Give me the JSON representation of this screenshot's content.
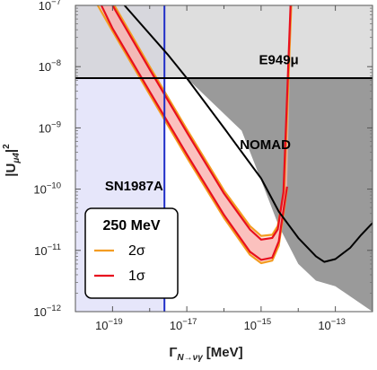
{
  "chart_data": {
    "type": "area",
    "xlabel_main": "Γ",
    "xlabel_sub": "N→νγ",
    "xlabel_unit": "[MeV]",
    "ylabel_main": "|U",
    "ylabel_sub": "μ4",
    "ylabel_exp": "2",
    "x_scale": "log",
    "y_scale": "log",
    "xlim": [
      1e-20,
      1e-12
    ],
    "ylim": [
      1e-12,
      1e-07
    ],
    "x_ticks": [
      {
        "value": 1e-19,
        "base": "10",
        "exp": "−19"
      },
      {
        "value": 1e-17,
        "base": "10",
        "exp": "−17"
      },
      {
        "value": 1e-15,
        "base": "10",
        "exp": "−15"
      },
      {
        "value": 1e-13,
        "base": "10",
        "exp": "−13"
      }
    ],
    "y_ticks": [
      {
        "value": 1e-12,
        "base": "10",
        "exp": "−12"
      },
      {
        "value": 1e-11,
        "base": "10",
        "exp": "−11"
      },
      {
        "value": 1e-10,
        "base": "10",
        "exp": "−10"
      },
      {
        "value": 1e-09,
        "base": "10",
        "exp": "−9"
      },
      {
        "value": 1e-08,
        "base": "10",
        "exp": "−8"
      },
      {
        "value": 1e-07,
        "base": "10",
        "exp": "−7"
      }
    ],
    "regions": [
      {
        "name": "SN1987A",
        "color": "#e6e6fa",
        "x_max": 2.5e-18
      },
      {
        "name": "E949μ",
        "color": "#d0d0d0",
        "y_min": 6.5e-09
      },
      {
        "name": "NOMAD",
        "color": "#9a9a9a",
        "boundary_x": [
          1e-17,
          3e-16,
          1e-15,
          3e-15,
          1e-14,
          3e-14,
          1e-13,
          1e-12
        ],
        "boundary_y": [
          6.5e-09,
          9e-10,
          1.4e-10,
          2.5e-11,
          6e-12,
          3.2e-12,
          2.6e-12,
          1e-12
        ]
      }
    ],
    "lines": [
      {
        "name": "SN1987A",
        "color": "#1f2ec8",
        "x": [
          2.5e-18,
          2.5e-18
        ],
        "y": [
          1e-12,
          1e-07
        ]
      },
      {
        "name": "E949μ",
        "color": "#000000",
        "x": [
          1e-20,
          1e-12
        ],
        "y": [
          6.5e-09,
          6.5e-09
        ]
      },
      {
        "name": "NOMAD",
        "color": "#000000",
        "x": [
          2.1e-19,
          3e-18,
          1e-17,
          1e-16,
          1e-15,
          3e-15,
          1e-14,
          3e-14,
          5e-14,
          1e-13,
          2.5e-13,
          5e-13,
          1e-12
        ],
        "y": [
          1e-07,
          1.6e-08,
          6.5e-09,
          1e-09,
          1.5e-10,
          4.3e-11,
          1.6e-11,
          8e-12,
          6.5e-12,
          7.2e-12,
          1.1e-11,
          1.8e-11,
          2.8e-11
        ]
      }
    ],
    "bands": [
      {
        "name": "2σ",
        "color": "#f39c22",
        "fill": "#ffd4c4",
        "lower": {
          "x": [
            4e-20,
            1e-19,
            1e-18,
            1e-17,
            1e-16,
            5e-16,
            1e-15,
            2e-15,
            3e-15,
            5e-15
          ],
          "y": [
            1e-07,
            3.8e-08,
            3.5e-09,
            3.3e-10,
            3.4e-11,
            8.5e-12,
            6.2e-12,
            6.8e-12,
            1.2e-11,
            1e-10
          ]
        },
        "upper": {
          "x": [
            1.12e-19,
            1e-18,
            1e-17,
            1e-16,
            5e-16,
            1e-15,
            2e-15,
            2.8e-15,
            4.2e-15,
            6.5e-15
          ],
          "y": [
            1e-07,
            1e-08,
            9.5e-10,
            9.5e-11,
            2.5e-11,
            1.72e-11,
            1.8e-11,
            2.5e-11,
            1e-10,
            1e-07
          ]
        }
      },
      {
        "name": "1σ",
        "color": "#e8101e",
        "fill": "#f7a3a3",
        "lower": {
          "x": [
            5e-20,
            1e-19,
            1e-18,
            1e-17,
            1e-16,
            5e-16,
            1e-15,
            2e-15,
            3e-15,
            5e-15
          ],
          "y": [
            1e-07,
            4.2e-08,
            3.9e-09,
            3.7e-10,
            3.8e-11,
            9.5e-12,
            7e-12,
            7.6e-12,
            1.4e-11,
            1.1e-10
          ]
        },
        "upper": {
          "x": [
            1e-19,
            1e-18,
            1e-17,
            1e-16,
            5e-16,
            1e-15,
            2e-15,
            2.8e-15,
            4e-15,
            6.2e-15
          ],
          "y": [
            1e-07,
            9e-09,
            8.5e-10,
            8.5e-11,
            2.2e-11,
            1.5e-11,
            1.6e-11,
            2.2e-11,
            9e-11,
            1e-07
          ]
        }
      }
    ],
    "labels": [
      {
        "text": "E949μ",
        "x": 3e-15,
        "y": 1.1e-08
      },
      {
        "text": "NOMAD",
        "x": 1.3e-15,
        "y": 4.5e-10
      },
      {
        "text": "SN1987A",
        "x": 3.8e-19,
        "y": 9.5e-11
      }
    ],
    "legend": {
      "title": "250 MeV",
      "placement": "bottom-left",
      "entries": [
        {
          "label": "2σ",
          "color": "#f39c22"
        },
        {
          "label": "1σ",
          "color": "#e8101e"
        }
      ]
    }
  }
}
